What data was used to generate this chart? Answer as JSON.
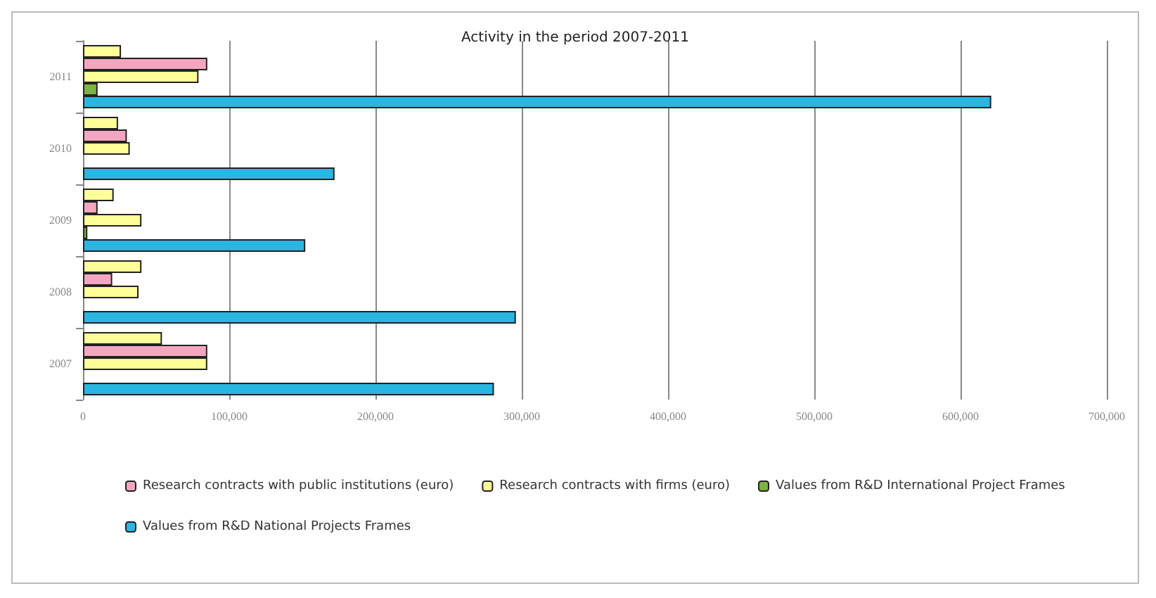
{
  "chart_data": {
    "type": "bar",
    "orientation": "horizontal",
    "title": "Activity in the period 2007-2011",
    "categories": [
      "2011",
      "2010",
      "2009",
      "2008",
      "2007"
    ],
    "series": [
      {
        "name": null,
        "color": "#ffff99",
        "values": [
          26000,
          24000,
          21000,
          40000,
          54000
        ]
      },
      {
        "name": "Research contracts with public institutions (euro)",
        "color": "#f4a6c0",
        "values": [
          85000,
          30000,
          10000,
          20000,
          85000
        ]
      },
      {
        "name": "Research contracts with firms (euro)",
        "color": "#ffff99",
        "values": [
          79000,
          32000,
          40000,
          38000,
          85000
        ]
      },
      {
        "name": "Values from R&D International Project Frames",
        "color": "#7cb342",
        "values": [
          10000,
          null,
          3000,
          null,
          null
        ]
      },
      {
        "name": "Values from R&D National Projects Frames",
        "color": "#29b6e0",
        "values": [
          621000,
          172000,
          152000,
          296000,
          281000
        ]
      }
    ],
    "xlim": [
      0,
      700000
    ],
    "xticks": [
      {
        "value": 0,
        "label": "0"
      },
      {
        "value": 100000,
        "label": "100,000"
      },
      {
        "value": 200000,
        "label": "200,000"
      },
      {
        "value": 300000,
        "label": "300,000"
      },
      {
        "value": 400000,
        "label": "400,000"
      },
      {
        "value": 500000,
        "label": "500,000"
      },
      {
        "value": 600000,
        "label": "600,000"
      },
      {
        "value": 700000,
        "label": "700,000"
      }
    ],
    "grid": "x",
    "legend": "bottom"
  }
}
